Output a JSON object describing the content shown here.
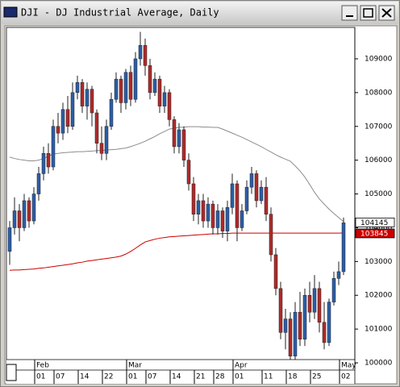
{
  "window": {
    "title": "DJI - DJ Industrial Average, Daily"
  },
  "chart_data": {
    "type": "candlestick",
    "categories": [
      null,
      null,
      null,
      null,
      null,
      null,
      "01",
      null,
      null,
      null,
      "07",
      null,
      null,
      null,
      null,
      "14",
      null,
      null,
      null,
      null,
      "22",
      null,
      null,
      null,
      null,
      "01",
      null,
      null,
      null,
      "07",
      null,
      null,
      null,
      null,
      "14",
      null,
      null,
      null,
      null,
      "21",
      null,
      null,
      null,
      "28",
      null,
      null,
      null,
      "01",
      null,
      null,
      null,
      null,
      null,
      "11",
      null,
      null,
      null,
      null,
      "18",
      null,
      null,
      null,
      null,
      "25",
      null,
      null,
      null,
      null,
      null,
      "02"
    ],
    "months": [
      null,
      null,
      null,
      null,
      null,
      null,
      "Feb",
      null,
      null,
      null,
      null,
      null,
      null,
      null,
      null,
      null,
      null,
      null,
      null,
      null,
      null,
      null,
      null,
      null,
      null,
      "Mar",
      null,
      null,
      null,
      null,
      null,
      null,
      null,
      null,
      null,
      null,
      null,
      null,
      null,
      null,
      null,
      null,
      null,
      null,
      null,
      null,
      null,
      "Apr",
      null,
      null,
      null,
      null,
      null,
      null,
      null,
      null,
      null,
      null,
      null,
      null,
      null,
      null,
      null,
      null,
      null,
      null,
      null,
      null,
      null,
      "May"
    ],
    "open": [
      103300,
      104000,
      104500,
      104000,
      104800,
      104200,
      105000,
      105600,
      106200,
      105800,
      107000,
      106800,
      107500,
      107000,
      108000,
      108300,
      107600,
      108100,
      107400,
      106500,
      106200,
      107000,
      107800,
      108400,
      107700,
      108600,
      107800,
      109000,
      109400,
      108800,
      108000,
      108400,
      107600,
      108000,
      107200,
      106400,
      106900,
      106000,
      105300,
      104400,
      104800,
      104200,
      104700,
      104000,
      104500,
      103900,
      104600,
      105300,
      104000,
      104500,
      105200,
      105600,
      104800,
      105200,
      104400,
      103200,
      102200,
      100900,
      101300,
      100200,
      101500,
      100700,
      102000,
      101500,
      102200,
      101200,
      100600,
      101800,
      102500,
      102700
    ],
    "high": [
      104200,
      104900,
      104700,
      105000,
      104900,
      105200,
      105800,
      106400,
      106500,
      107200,
      107400,
      107700,
      107900,
      108300,
      108500,
      108400,
      108300,
      108200,
      107500,
      107000,
      107200,
      108000,
      108600,
      108500,
      108700,
      108800,
      109200,
      109800,
      109600,
      109000,
      108600,
      108500,
      108200,
      108100,
      107300,
      107100,
      107000,
      106200,
      105500,
      105000,
      105000,
      104900,
      104800,
      104700,
      104600,
      104800,
      105600,
      105400,
      104700,
      105400,
      105800,
      105700,
      105400,
      105500,
      104600,
      103400,
      102400,
      101600,
      101500,
      101800,
      102100,
      102200,
      102400,
      102600,
      102400,
      101800,
      101900,
      102700,
      103000,
      104300
    ],
    "low": [
      102900,
      103800,
      103600,
      103900,
      104000,
      104100,
      104800,
      105400,
      105600,
      105700,
      106500,
      106600,
      106800,
      106900,
      107800,
      107400,
      107200,
      107000,
      106200,
      106000,
      106000,
      106900,
      107700,
      107400,
      107500,
      107600,
      107700,
      108800,
      108500,
      107800,
      107900,
      107400,
      107400,
      107000,
      106200,
      106200,
      105800,
      105100,
      104200,
      104100,
      104000,
      104000,
      103800,
      103800,
      103700,
      103600,
      104400,
      103600,
      103900,
      104400,
      105000,
      104600,
      104700,
      104200,
      103000,
      102000,
      100700,
      100400,
      100000,
      100000,
      100500,
      100500,
      101200,
      101300,
      100900,
      100400,
      100500,
      101700,
      102300,
      102600
    ],
    "close": [
      104000,
      104500,
      104000,
      104800,
      104200,
      105000,
      105600,
      106200,
      105800,
      107000,
      106800,
      107500,
      107000,
      108000,
      108300,
      107600,
      108100,
      107400,
      106500,
      106200,
      107000,
      107800,
      108400,
      107700,
      108600,
      107800,
      109000,
      109400,
      108800,
      108000,
      108400,
      107600,
      108000,
      107200,
      106400,
      106900,
      106000,
      105300,
      104400,
      104800,
      104200,
      104700,
      104000,
      104500,
      103900,
      104600,
      105300,
      104000,
      104500,
      105200,
      105600,
      104800,
      105200,
      104400,
      103200,
      102200,
      100900,
      101300,
      100200,
      101500,
      100700,
      102000,
      101500,
      102200,
      101200,
      100600,
      101800,
      102500,
      102700,
      104145
    ],
    "up_color": "#2c5ea8",
    "down_color": "#b02a2a",
    "overlays": [
      {
        "color": "#8c8c8c",
        "values": [
          106090,
          106050,
          106020,
          106000,
          105980,
          105980,
          106000,
          106050,
          106120,
          106180,
          106200,
          106220,
          106230,
          106240,
          106250,
          106250,
          106260,
          106270,
          106280,
          106290,
          106300,
          106310,
          106320,
          106340,
          106360,
          106400,
          106450,
          106500,
          106560,
          106630,
          106700,
          106780,
          106850,
          106920,
          106950,
          106970,
          106980,
          106990,
          106990,
          106990,
          106980,
          106980,
          106970,
          106970,
          106920,
          106860,
          106800,
          106740,
          106680,
          106610,
          106540,
          106470,
          106400,
          106320,
          106240,
          106160,
          106090,
          106030,
          105970,
          105830,
          105680,
          105500,
          105280,
          105050,
          104850,
          104700,
          104550,
          104420,
          104300,
          104180
        ]
      },
      {
        "color": "#cc0000",
        "values": [
          102740,
          102750,
          102750,
          102760,
          102770,
          102780,
          102800,
          102810,
          102830,
          102850,
          102870,
          102890,
          102910,
          102930,
          102960,
          102980,
          103010,
          103030,
          103050,
          103070,
          103090,
          103110,
          103130,
          103160,
          103220,
          103300,
          103390,
          103490,
          103580,
          103620,
          103660,
          103690,
          103710,
          103730,
          103740,
          103750,
          103760,
          103770,
          103780,
          103790,
          103800,
          103810,
          103820,
          103820,
          103830,
          103830,
          103840,
          103840,
          103840,
          103840,
          103840,
          103840,
          103840,
          103840,
          103840,
          103840,
          103840,
          103840,
          103840,
          103840,
          103840,
          103840,
          103840,
          103840,
          103840,
          103840,
          103840,
          103840,
          103840,
          103845
        ]
      }
    ],
    "ylim": [
      99810,
      109930
    ],
    "yticks": [
      100000,
      101000,
      102000,
      103000,
      104000,
      105000,
      106000,
      107000,
      108000,
      109000
    ]
  }
}
